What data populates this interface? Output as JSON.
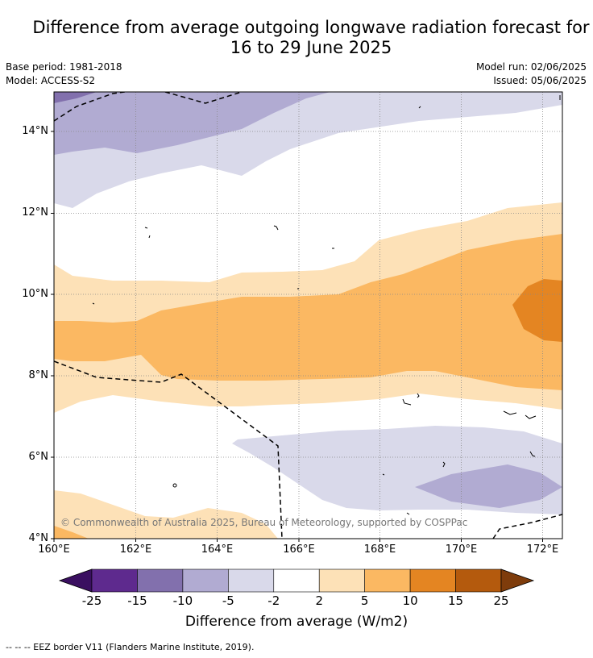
{
  "title_line1": "Difference from average outgoing longwave radiation forecast for",
  "title_line2": "16 to 29 June 2025",
  "base_period": "Base period: 1981-2018",
  "model": "Model: ACCESS-S2",
  "model_run": "Model run: 02/06/2025",
  "issued": "Issued: 05/06/2025",
  "map": {
    "lon_labels": [
      "160°E",
      "162°E",
      "164°E",
      "166°E",
      "168°E",
      "170°E",
      "172°E"
    ],
    "lat_labels": [
      "14°N",
      "12°N",
      "10°N",
      "8°N",
      "6°N",
      "4°N"
    ],
    "copyright": "© Commonwealth of Australia 2025, Bureau of Meteorology, supported by COSPPac"
  },
  "colorbar": {
    "ticks": [
      "-25",
      "-15",
      "-10",
      "-5",
      "-2",
      "2",
      "5",
      "10",
      "15",
      "25"
    ],
    "colors": [
      "#5e2a8e",
      "#8270ad",
      "#b1abd2",
      "#d9d9ea",
      "#ffffff",
      "#fde1b7",
      "#fbb862",
      "#e48522",
      "#b45a0d"
    ],
    "under_color": "#3a0f60",
    "over_color": "#7e3c0b",
    "label": "Difference from average (W/m2)"
  },
  "footer": "--  --  -- EEZ border V11 (Flanders Marine Institute, 2019)."
}
